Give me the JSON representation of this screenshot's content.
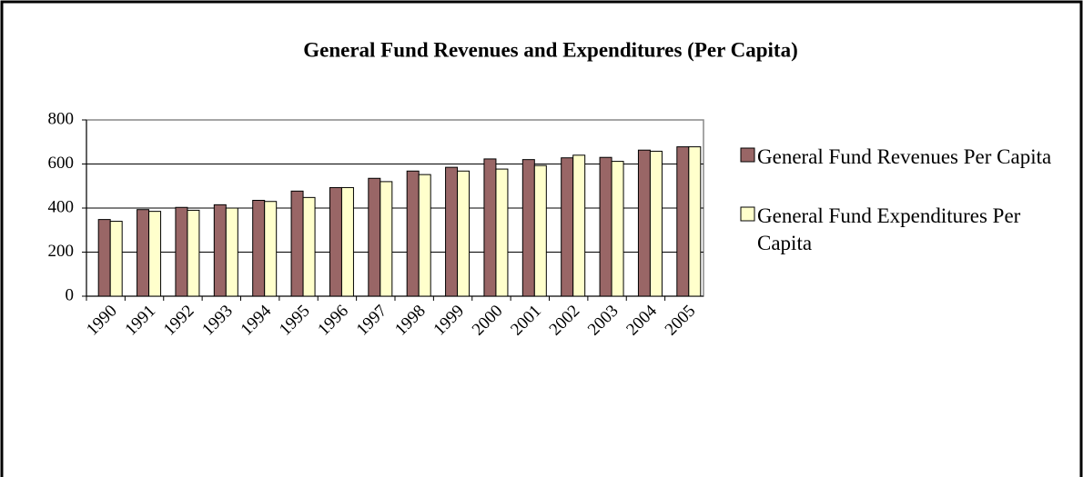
{
  "chart_data": {
    "type": "bar",
    "title": "General Fund Revenues and Expenditures (Per Capita)",
    "categories": [
      "1990",
      "1991",
      "1992",
      "1993",
      "1994",
      "1995",
      "1996",
      "1997",
      "1998",
      "1999",
      "2000",
      "2001",
      "2002",
      "2003",
      "2004",
      "2005"
    ],
    "series": [
      {
        "name": "General Fund Revenues Per Capita",
        "color": "#996666",
        "values": [
          348,
          393,
          403,
          415,
          435,
          477,
          493,
          535,
          568,
          585,
          623,
          620,
          628,
          630,
          663,
          678
        ]
      },
      {
        "name": "General Fund Expenditures Per Capita",
        "color": "#ffffcc",
        "values": [
          340,
          385,
          390,
          400,
          430,
          448,
          493,
          520,
          552,
          568,
          577,
          593,
          640,
          612,
          658,
          678
        ]
      }
    ],
    "ylim": [
      0,
      800
    ],
    "yticks": [
      0,
      200,
      400,
      600,
      800
    ],
    "grid": true,
    "legend": "right"
  }
}
